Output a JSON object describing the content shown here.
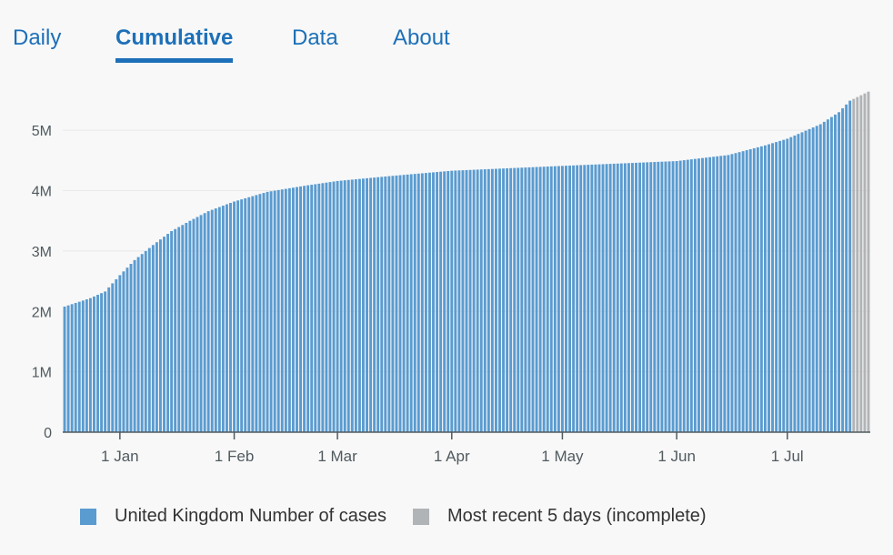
{
  "tabs": [
    {
      "label": "Daily",
      "active": false
    },
    {
      "label": "Cumulative",
      "active": true
    },
    {
      "label": "Data",
      "active": false
    },
    {
      "label": "About",
      "active": false
    }
  ],
  "colors": {
    "accent": "#1d70b8",
    "bar": "#5a9bd0",
    "incomplete": "#b1b4b6"
  },
  "legend": [
    {
      "label": "United Kingdom Number of cases",
      "color": "#5a9bd0"
    },
    {
      "label": "Most recent 5 days (incomplete)",
      "color": "#b1b4b6"
    }
  ],
  "chart_data": {
    "type": "bar",
    "x_start": "2020-12-17",
    "x_end": "2021-07-23",
    "incomplete_days": 5,
    "ylim": [
      0,
      5500000
    ],
    "yticks": [
      {
        "value": 0,
        "label": "0"
      },
      {
        "value": 1000000,
        "label": "1M"
      },
      {
        "value": 2000000,
        "label": "2M"
      },
      {
        "value": 3000000,
        "label": "3M"
      },
      {
        "value": 4000000,
        "label": "4M"
      },
      {
        "value": 5000000,
        "label": "5M"
      }
    ],
    "xticks": [
      {
        "date": "2021-01-01",
        "label": "1 Jan"
      },
      {
        "date": "2021-02-01",
        "label": "1 Feb"
      },
      {
        "date": "2021-03-01",
        "label": "1 Mar"
      },
      {
        "date": "2021-04-01",
        "label": "1 Apr"
      },
      {
        "date": "2021-05-01",
        "label": "1 May"
      },
      {
        "date": "2021-06-01",
        "label": "1 Jun"
      },
      {
        "date": "2021-07-01",
        "label": "1 Jul"
      }
    ],
    "anchors": [
      {
        "date": "2020-12-17",
        "value": 2080000
      },
      {
        "date": "2020-12-24",
        "value": 2220000
      },
      {
        "date": "2020-12-28",
        "value": 2330000
      },
      {
        "date": "2021-01-01",
        "value": 2600000
      },
      {
        "date": "2021-01-05",
        "value": 2850000
      },
      {
        "date": "2021-01-10",
        "value": 3100000
      },
      {
        "date": "2021-01-15",
        "value": 3330000
      },
      {
        "date": "2021-01-20",
        "value": 3500000
      },
      {
        "date": "2021-01-25",
        "value": 3660000
      },
      {
        "date": "2021-02-01",
        "value": 3820000
      },
      {
        "date": "2021-02-10",
        "value": 3980000
      },
      {
        "date": "2021-02-20",
        "value": 4080000
      },
      {
        "date": "2021-03-01",
        "value": 4160000
      },
      {
        "date": "2021-03-15",
        "value": 4240000
      },
      {
        "date": "2021-04-01",
        "value": 4330000
      },
      {
        "date": "2021-05-01",
        "value": 4410000
      },
      {
        "date": "2021-06-01",
        "value": 4490000
      },
      {
        "date": "2021-06-15",
        "value": 4590000
      },
      {
        "date": "2021-06-25",
        "value": 4750000
      },
      {
        "date": "2021-07-01",
        "value": 4860000
      },
      {
        "date": "2021-07-10",
        "value": 5100000
      },
      {
        "date": "2021-07-15",
        "value": 5300000
      },
      {
        "date": "2021-07-18",
        "value": 5490000
      },
      {
        "date": "2021-07-23",
        "value": 5640000
      }
    ]
  }
}
